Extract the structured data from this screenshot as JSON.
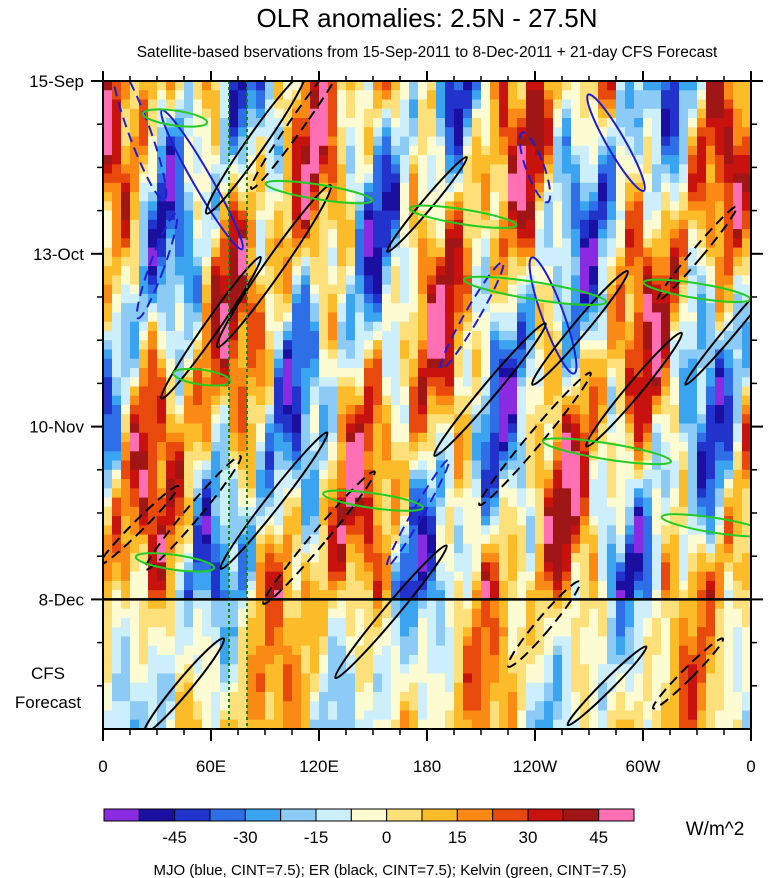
{
  "chart_data": {
    "type": "heatmap",
    "title": "OLR anomalies: 2.5N - 27.5N",
    "subtitle": "Satellite-based bservations from 15-Sep-2011 to 8-Dec-2011 + 21-day CFS Forecast",
    "xlabel": "",
    "ylabel": "",
    "x_ticks": [
      {
        "lon": 0,
        "label": "0"
      },
      {
        "lon": 60,
        "label": "60E"
      },
      {
        "lon": 120,
        "label": "120E"
      },
      {
        "lon": 180,
        "label": "180"
      },
      {
        "lon": 240,
        "label": "120W"
      },
      {
        "lon": 300,
        "label": "60W"
      },
      {
        "lon": 360,
        "label": "0"
      }
    ],
    "xlim": [
      0,
      360
    ],
    "y_ticks": [
      {
        "day": 0,
        "label": "15-Sep"
      },
      {
        "day": 28,
        "label": "13-Oct"
      },
      {
        "day": 56,
        "label": "10-Nov"
      },
      {
        "day": 84,
        "label": "8-Dec"
      }
    ],
    "ylim_days": [
      0,
      105
    ],
    "observation_end_day": 84,
    "forecast_label": [
      "CFS",
      "Forecast"
    ],
    "colorbar": {
      "units": "W/m^2",
      "levels": [
        -52.5,
        -45,
        -37.5,
        -30,
        -22.5,
        -15,
        -7.5,
        0,
        7.5,
        15,
        22.5,
        30,
        37.5,
        45,
        52.5
      ],
      "tick_labels": [
        {
          "value": -45,
          "label": "-45"
        },
        {
          "value": -30,
          "label": "-30"
        },
        {
          "value": -15,
          "label": "-15"
        },
        {
          "value": 0,
          "label": "0"
        },
        {
          "value": 15,
          "label": "15"
        },
        {
          "value": 30,
          "label": "30"
        },
        {
          "value": 45,
          "label": "45"
        }
      ],
      "colors": [
        "#8a2be2",
        "#1a0fa0",
        "#2233cc",
        "#2e6ee6",
        "#3aa4f0",
        "#8ccbf5",
        "#cdeefb",
        "#fdfbd2",
        "#fde07a",
        "#fcbc2a",
        "#fb8a14",
        "#e84a0e",
        "#c8120e",
        "#a01616",
        "#ff6fb4"
      ]
    },
    "contour_legend": "MJO (blue, CINT=7.5); ER (black, CINT=7.5); Kelvin (green, CINT=7.5)",
    "reference_lines": [
      {
        "lon": 70,
        "style": "dotted green"
      },
      {
        "lon": 80,
        "style": "dotted green"
      }
    ],
    "series": [
      {
        "name": "MJO",
        "color": "#1e1ed2",
        "cint": 7.5
      },
      {
        "name": "ER",
        "color": "#000000",
        "cint": 7.5
      },
      {
        "name": "Kelvin",
        "color": "#22cc22",
        "cint": 7.5
      }
    ]
  }
}
